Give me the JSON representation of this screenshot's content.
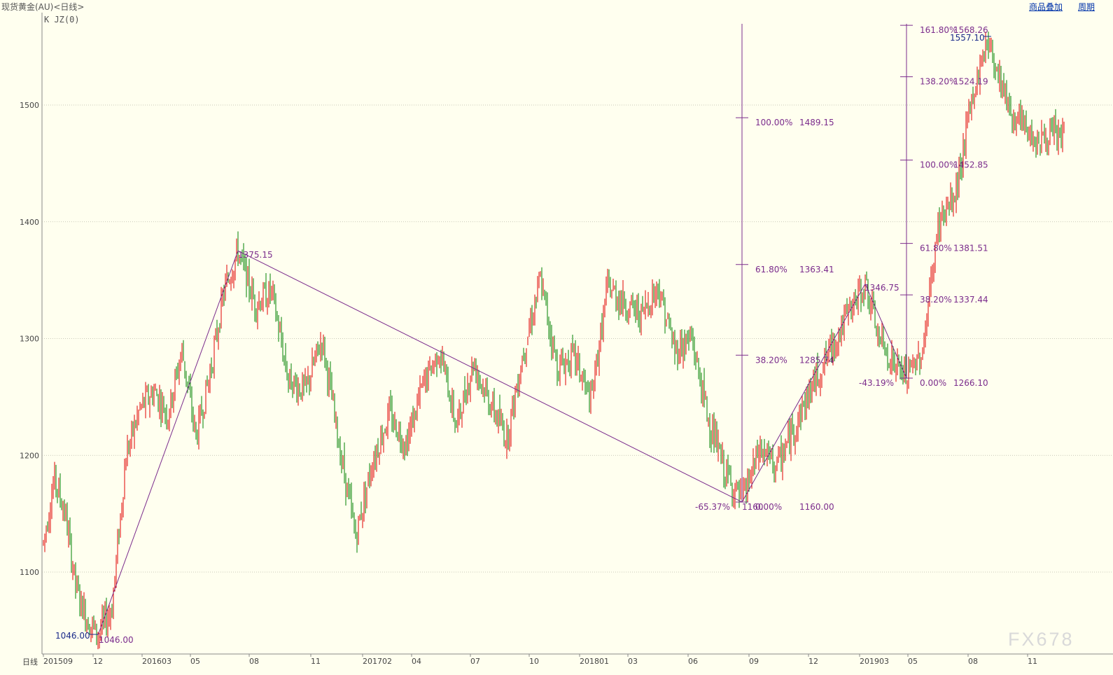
{
  "header": {
    "title": "现货黄金(AU)<日线>",
    "overlay_link": "商品叠加",
    "period_link": "周期"
  },
  "indicator_label": "K  JZ(0)",
  "x_axis_prefix": "日线",
  "watermark": "FX678",
  "colors": {
    "background": "#FFFFEF",
    "up": "#E00000",
    "down": "#008000",
    "drawing": "#7B2C8C",
    "grid": "#B8B8A8",
    "price_tag": "#1a2a8a"
  },
  "chart_data": {
    "type": "candlestick",
    "ylim": [
      1035,
      1575
    ],
    "y_ticks": [
      1100,
      1200,
      1300,
      1400,
      1500
    ],
    "grid": true,
    "x_ticks": [
      "201509",
      "12",
      "201603",
      "05",
      "08",
      "11",
      "201702",
      "04",
      "07",
      "10",
      "201801",
      "03",
      "06",
      "09",
      "12",
      "201903",
      "05",
      "08",
      "11"
    ],
    "trend_points": [
      [
        "201509",
        1125
      ],
      [
        "201510",
        1180
      ],
      [
        "201510b",
        1150
      ],
      [
        "201511",
        1085
      ],
      [
        "201512",
        1060
      ],
      [
        "201512b",
        1046
      ],
      [
        "201601",
        1070
      ],
      [
        "201602",
        1200
      ],
      [
        "201602b",
        1240
      ],
      [
        "201603",
        1255
      ],
      [
        "201604",
        1235
      ],
      [
        "201605",
        1290
      ],
      [
        "201605b",
        1215
      ],
      [
        "201606",
        1270
      ],
      [
        "201607",
        1340
      ],
      [
        "201607b",
        1375.15
      ],
      [
        "201608",
        1330
      ],
      [
        "201609",
        1340
      ],
      [
        "201610",
        1265
      ],
      [
        "201610b",
        1255
      ],
      [
        "201611",
        1300
      ],
      [
        "201611b",
        1210
      ],
      [
        "201612",
        1130
      ],
      [
        "201701",
        1195
      ],
      [
        "201702",
        1235
      ],
      [
        "201703",
        1210
      ],
      [
        "201704",
        1260
      ],
      [
        "201704b",
        1290
      ],
      [
        "201705",
        1225
      ],
      [
        "201706",
        1280
      ],
      [
        "201706b",
        1245
      ],
      [
        "201707",
        1215
      ],
      [
        "201708",
        1290
      ],
      [
        "201709",
        1350
      ],
      [
        "201710",
        1275
      ],
      [
        "201711",
        1285
      ],
      [
        "201712",
        1245
      ],
      [
        "201801",
        1345
      ],
      [
        "201802",
        1330
      ],
      [
        "201803",
        1320
      ],
      [
        "201804",
        1345
      ],
      [
        "201805",
        1290
      ],
      [
        "201806",
        1300
      ],
      [
        "201807",
        1230
      ],
      [
        "201808",
        1185
      ],
      [
        "201808b",
        1160
      ],
      [
        "201809",
        1205
      ],
      [
        "201810",
        1190
      ],
      [
        "201811",
        1225
      ],
      [
        "201812",
        1260
      ],
      [
        "201901",
        1290
      ],
      [
        "201902",
        1320
      ],
      [
        "201902b",
        1346.75
      ],
      [
        "201903",
        1300
      ],
      [
        "201904",
        1280
      ],
      [
        "201905",
        1266.1
      ],
      [
        "201906",
        1290
      ],
      [
        "201906b",
        1400
      ],
      [
        "201907",
        1420
      ],
      [
        "201908",
        1500
      ],
      [
        "201909",
        1557.1
      ],
      [
        "201910",
        1490
      ],
      [
        "201911",
        1470
      ],
      [
        "201912",
        1475
      ]
    ],
    "price_tags": [
      {
        "text": "1046.00",
        "kind": "low"
      },
      {
        "text": "1557.10",
        "kind": "high"
      }
    ],
    "trendlines": [
      {
        "from": [
          "201512b",
          1046
        ],
        "to": [
          "201607b",
          1375.15
        ],
        "label": "1046.00",
        "end_label": "1375.15"
      },
      {
        "from": [
          "201607b",
          1375.15
        ],
        "to": [
          "201808b",
          1160
        ],
        "label": "-65.37%"
      },
      {
        "from": [
          "201808b",
          1160
        ],
        "to": [
          "201902b",
          1346.75
        ],
        "label": "1346.75"
      },
      {
        "from": [
          "201902b",
          1346.75
        ],
        "to": [
          "201905",
          1266.1
        ],
        "label": "-43.19%"
      }
    ],
    "fib_sets": [
      {
        "anchor_x": "201808b",
        "levels": [
          {
            "pct": "100.00%",
            "value": 1489.15
          },
          {
            "pct": "61.80%",
            "value": 1363.41
          },
          {
            "pct": "38.20%",
            "value": 1285.74
          },
          {
            "pct": "0.00%",
            "value": 1160.0
          }
        ],
        "overlap_label": "1160"
      },
      {
        "anchor_x": "201905",
        "levels": [
          {
            "pct": "161.80%",
            "value": 1568.26
          },
          {
            "pct": "138.20%",
            "value": 1524.19
          },
          {
            "pct": "100.00%",
            "value": 1452.85
          },
          {
            "pct": "61.80%",
            "value": 1381.51
          },
          {
            "pct": "38.20%",
            "value": 1337.44
          },
          {
            "pct": "0.00%",
            "value": 1266.1
          }
        ]
      }
    ]
  }
}
